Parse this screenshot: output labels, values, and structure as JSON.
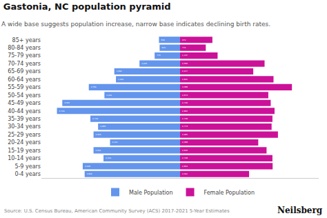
{
  "chart_data": {
    "type": "bar",
    "orientation": "horizontal",
    "title": "Gastonia, NC population pyramid",
    "subtitle": "A wide base suggests population increase, narrow base indicates declining birth rates.",
    "annotations": [
      "Source: U.S. Census Bureau, American Community Survey (ACS) 2017-2021 5-Year Estimates",
      "Neilsberg"
    ],
    "categories": [
      "0-4 years",
      "5-9 years",
      "10-14 years",
      "15-19 years",
      "20-24 years",
      "25-29 years",
      "30-34 years",
      "35-39 years",
      "40-44 years",
      "45-49 years",
      "50-54 years",
      "55-59 years",
      "60-64 years",
      "65-69 years",
      "70-74 years",
      "75-79 years",
      "80-84 years",
      "85+ years"
    ],
    "series": [
      {
        "name": "Male Population",
        "color": "#6495ED",
        "values": [
          2890,
          2948,
          2319,
          2621,
          2121,
          2620,
          2483,
          2716,
          3729,
          3567,
          2291,
          2764,
          1942,
          1992,
          1229,
          770,
          619,
          639
        ],
        "value_labels": [
          "2,890",
          "2,948",
          "2,319",
          "2,621",
          "2,121",
          "2,620",
          "2,483",
          "2,716",
          "3,729",
          "3,567",
          "2,291",
          "2,764",
          "1,942",
          "1,992",
          "1,229",
          "770",
          "619",
          "639"
        ]
      },
      {
        "name": "Female Population",
        "color": "#CC1199",
        "values": [
          2091,
          2804,
          2798,
          2620,
          2368,
          2965,
          2773,
          2798,
          2862,
          2746,
          2673,
          3388,
          2831,
          2217,
          2560,
          1137,
          779,
          979
        ],
        "value_labels": [
          "2,091",
          "2,804",
          "2,798",
          "2,620",
          "2,368",
          "2,965",
          "2,773",
          "2,798",
          "2,862",
          "2,746",
          "2,673",
          "3,388",
          "2,831",
          "2,217",
          "2,560",
          "1,137",
          "779",
          "979"
        ]
      }
    ],
    "xlim": [
      -4200,
      4200
    ],
    "xticks": [],
    "tick_labels": "y",
    "data_labels": true,
    "grid": false,
    "legend": "bottom"
  }
}
